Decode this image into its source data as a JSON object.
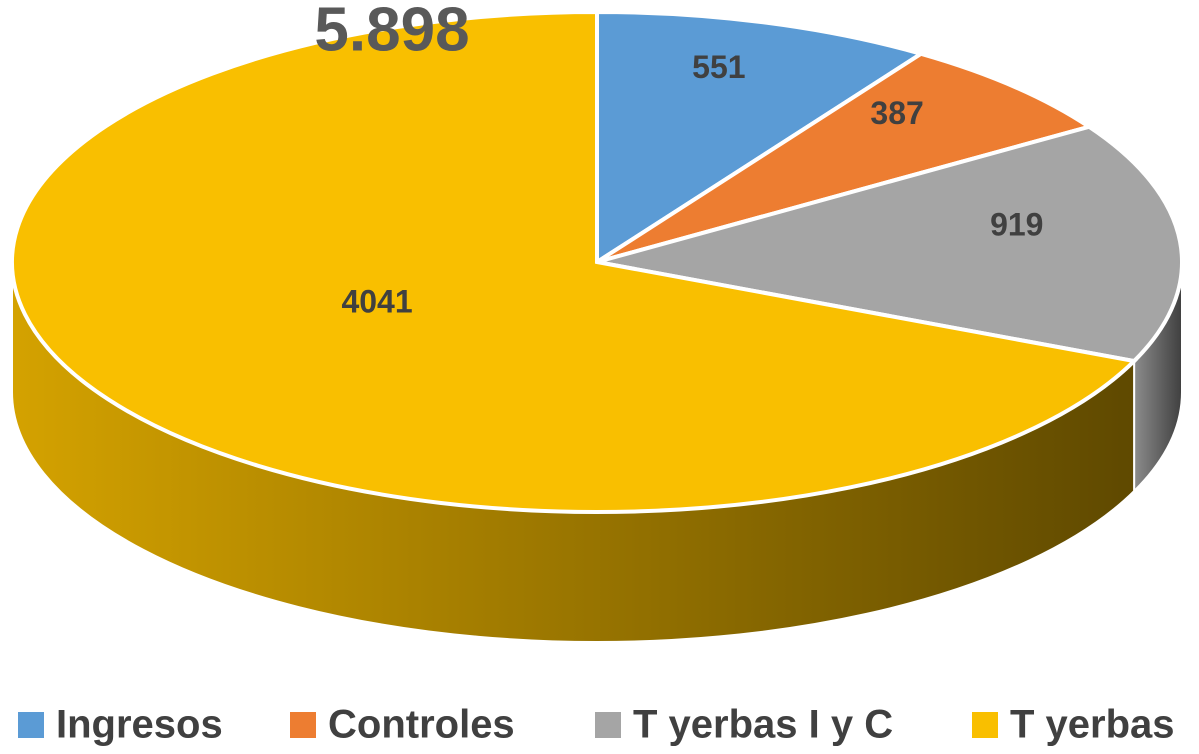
{
  "chart_data": {
    "type": "pie3d",
    "title": "5.898",
    "categories": [
      "Ingresos",
      "Controles",
      "T yerbas I y C",
      "T yerbas"
    ],
    "values": [
      551,
      387,
      919,
      4041
    ],
    "colors": [
      "#5b9bd5",
      "#ed7d31",
      "#a5a5a5",
      "#f9bf00"
    ],
    "legend": "bottom"
  }
}
